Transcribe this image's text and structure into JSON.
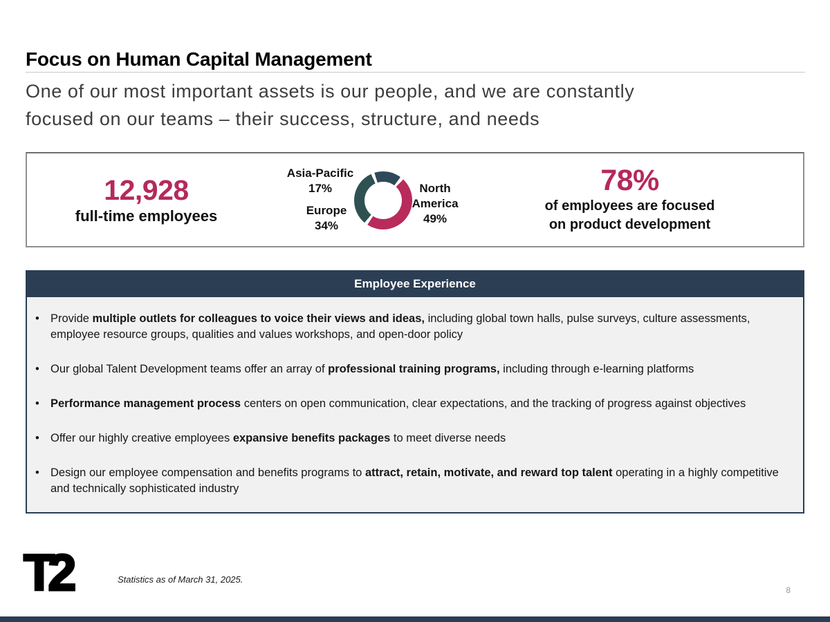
{
  "slide": {
    "title": "Focus on Human Capital Management",
    "subtitle_line1": "One of our most important assets is our people, and we are constantly",
    "subtitle_line2": "focused on our teams – their success, structure, and needs"
  },
  "stats": {
    "employees_value": "12,928",
    "employees_label": "full-time employees",
    "product_dev_value": "78%",
    "product_dev_label_line1": "of employees are focused",
    "product_dev_label_line2": "on product development"
  },
  "chart_data": {
    "type": "pie",
    "donut": true,
    "start_angle_deg": 40,
    "slices": [
      {
        "label": "North America",
        "value": 49,
        "color": "#b82b5c"
      },
      {
        "label": "Europe",
        "value": 34,
        "color": "#2f5152"
      },
      {
        "label": "Asia-Pacific",
        "value": 17,
        "color": "#30495a"
      }
    ],
    "labels": {
      "asia_pacific_name": "Asia-Pacific",
      "asia_pacific_pct": "17%",
      "europe_name": "Europe",
      "europe_pct": "34%",
      "na_line1": "North",
      "na_line2": "America",
      "na_pct": "49%"
    },
    "legend_position": "around",
    "title": ""
  },
  "panel": {
    "header": "Employee Experience",
    "bullets": [
      [
        {
          "t": "Provide ",
          "b": false
        },
        {
          "t": "multiple outlets for colleagues to voice their views and ideas,",
          "b": true
        },
        {
          "t": " including global town halls, pulse surveys, culture assessments, employee resource groups, qualities and values workshops, and open-door policy",
          "b": false
        }
      ],
      [
        {
          "t": "Our global Talent Development teams offer an array of ",
          "b": false
        },
        {
          "t": "professional training programs,",
          "b": true
        },
        {
          "t": " including through e-learning platforms",
          "b": false
        }
      ],
      [
        {
          "t": "Performance management process",
          "b": true
        },
        {
          "t": " centers on open communication, clear expectations, and the tracking of progress against objectives",
          "b": false
        }
      ],
      [
        {
          "t": "Offer our highly creative employees ",
          "b": false
        },
        {
          "t": "expansive benefits packages",
          "b": true
        },
        {
          "t": " to meet diverse needs",
          "b": false
        }
      ],
      [
        {
          "t": "Design our employee compensation and benefits programs to ",
          "b": false
        },
        {
          "t": "attract, retain, motivate, and reward top talent",
          "b": true
        },
        {
          "t": " operating in a highly competitive and technically sophisticated industry",
          "b": false
        }
      ]
    ]
  },
  "footer": {
    "logo_text": "T2",
    "footnote": "Statistics as of March 31, 2025.",
    "page_number": "8"
  },
  "colors": {
    "crimson": "#b5295c",
    "navy": "#2b3e54",
    "teal": "#2f5152",
    "panel-bg": "#f1f1f1",
    "border-gray": "#8f8f8f"
  }
}
